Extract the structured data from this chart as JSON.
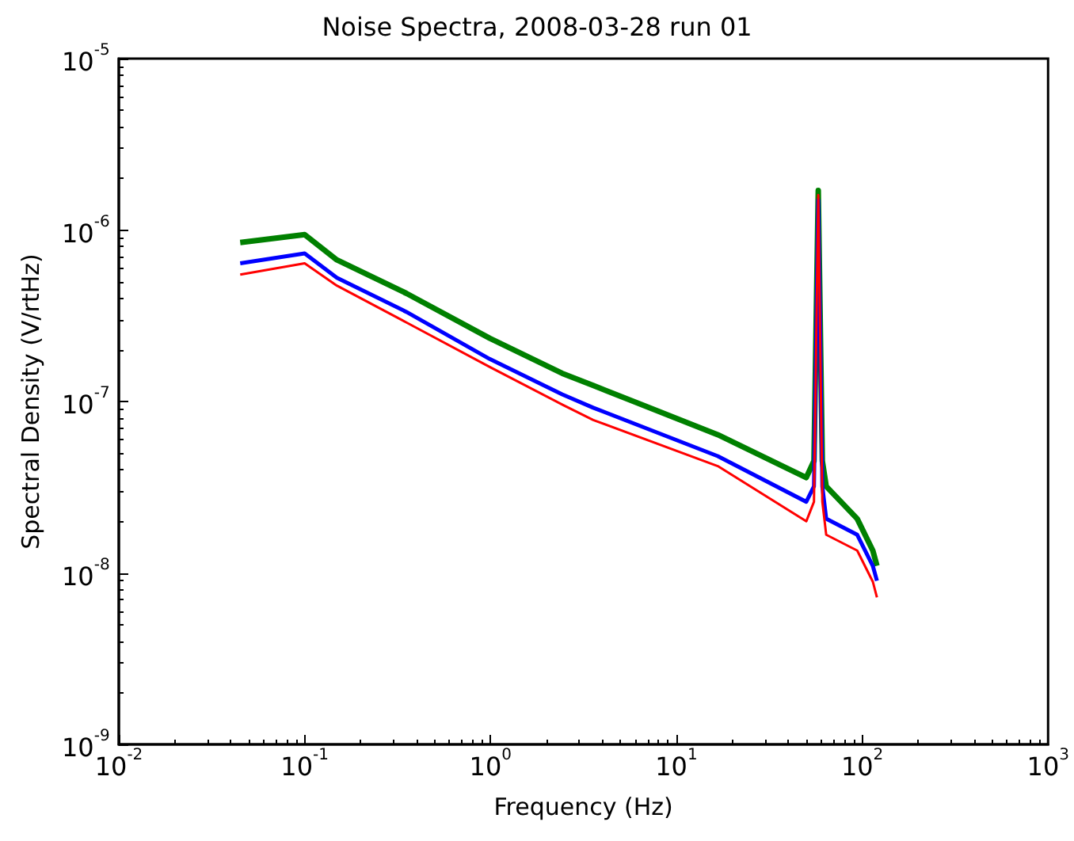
{
  "chart_data": {
    "type": "line",
    "title": "Noise Spectra, 2008-03-28 run 01",
    "xlabel": "Frequency (Hz)",
    "ylabel": "Spectral Density (V/rtHz)",
    "log": "xy",
    "grid": false,
    "marker": "none",
    "line_style": "solid",
    "x": [
      0.045,
      0.1,
      0.149,
      0.353,
      0.99,
      2.43,
      3.57,
      16.7,
      50,
      55,
      58,
      61,
      64,
      94,
      114,
      120
    ],
    "series": [
      {
        "color": "#008000",
        "values": [
          8.45e-07,
          9.4e-07,
          6.7e-07,
          4.27e-07,
          2.34e-07,
          1.46e-07,
          1.24e-07,
          6.4e-08,
          3.6e-08,
          4.5e-08,
          1.7e-06,
          4.5e-08,
          3.2e-08,
          2.07e-08,
          1.35e-08,
          1.1e-08
        ]
      },
      {
        "color": "#0000ff",
        "values": [
          6.4e-07,
          7.3e-07,
          5.27e-07,
          3.33e-07,
          1.77e-07,
          1.1e-07,
          9.2e-08,
          4.8e-08,
          2.6e-08,
          3.2e-08,
          1.5e-06,
          3.2e-08,
          2.07e-08,
          1.67e-08,
          1.1e-08,
          9e-09
        ]
      },
      {
        "color": "#ff0000",
        "values": [
          5.5e-07,
          6.4e-07,
          4.74e-07,
          2.89e-07,
          1.59e-07,
          9.6e-08,
          7.8e-08,
          4.2e-08,
          2e-08,
          2.6e-08,
          1.6e-06,
          2.6e-08,
          1.67e-08,
          1.35e-08,
          8.9e-09,
          7.2e-09
        ]
      }
    ],
    "xlim": [
      0.01,
      1000
    ],
    "xticks": [
      {
        "value": 0.01,
        "label": "10$^{-2}$"
      },
      {
        "value": 0.1,
        "label": "10$^{-1}$"
      },
      {
        "value": 1,
        "label": "10$^{0}$"
      },
      {
        "value": 10,
        "label": "10$^{1}$"
      },
      {
        "value": 100,
        "label": "10$^{2}$"
      },
      {
        "value": 1000,
        "label": "10$^{3}$"
      }
    ],
    "ylim": [
      1e-09,
      1e-05
    ],
    "yticks": [
      {
        "value": 1e-09,
        "label": "10$^{-9}$"
      },
      {
        "value": 1e-08,
        "label": "10$^{-8}$"
      },
      {
        "value": 1e-07,
        "label": "10$^{-7}$"
      },
      {
        "value": 1e-06,
        "label": "10$^{-6}$"
      },
      {
        "value": 1e-05,
        "label": "10$^{-5}$"
      }
    ]
  }
}
